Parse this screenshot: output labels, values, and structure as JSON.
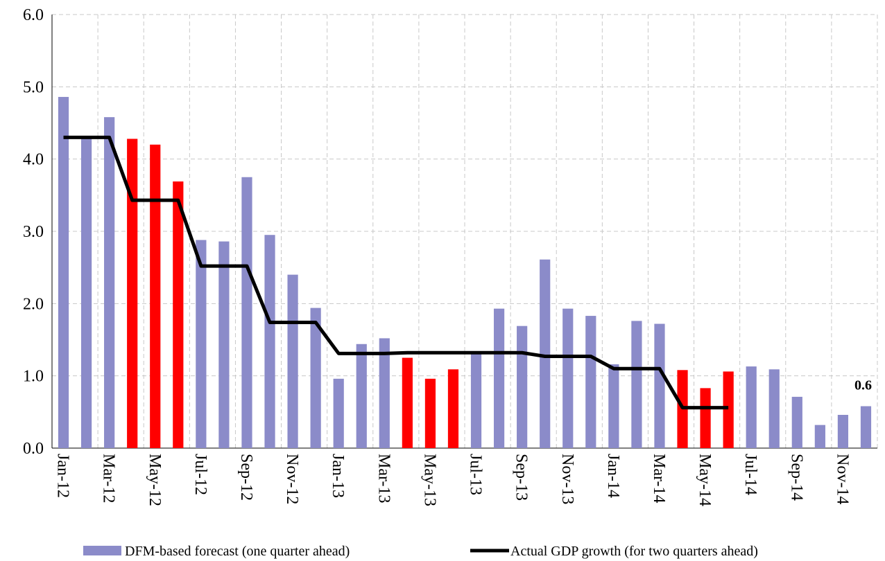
{
  "chart_data": {
    "type": "bar_line",
    "categories": [
      "Jan-12",
      null,
      "Mar-12",
      null,
      "May-12",
      null,
      "Jul-12",
      null,
      "Sep-12",
      null,
      "Nov-12",
      null,
      "Jan-13",
      null,
      "Mar-13",
      null,
      "May-13",
      null,
      "Jul-13",
      null,
      "Sep-13",
      null,
      "Nov-13",
      null,
      "Jan-14",
      null,
      "Mar-14",
      null,
      "May-14",
      null,
      "Jul-14",
      null,
      "Sep-14",
      null,
      "Nov-14",
      null
    ],
    "series": [
      {
        "name": "DFM-based forecast (one quarter ahead)",
        "type": "bar",
        "color": "#8b8bc9",
        "colors": [
          "#8b8bc9",
          "#8b8bc9",
          "#8b8bc9",
          "#ff0000",
          "#ff0000",
          "#ff0000",
          "#8b8bc9",
          "#8b8bc9",
          "#8b8bc9",
          "#8b8bc9",
          "#8b8bc9",
          "#8b8bc9",
          "#8b8bc9",
          "#8b8bc9",
          "#8b8bc9",
          "#ff0000",
          "#ff0000",
          "#ff0000",
          "#8b8bc9",
          "#8b8bc9",
          "#8b8bc9",
          "#8b8bc9",
          "#8b8bc9",
          "#8b8bc9",
          "#8b8bc9",
          "#8b8bc9",
          "#8b8bc9",
          "#ff0000",
          "#ff0000",
          "#ff0000",
          "#8b8bc9",
          "#8b8bc9",
          "#8b8bc9",
          "#8b8bc9",
          "#8b8bc9",
          "#8b8bc9"
        ],
        "values": [
          4.86,
          4.3,
          4.58,
          4.28,
          4.2,
          3.69,
          2.88,
          2.86,
          3.75,
          2.95,
          2.4,
          1.94,
          0.96,
          1.44,
          1.52,
          1.25,
          0.96,
          1.09,
          1.3,
          1.93,
          1.69,
          2.61,
          1.93,
          1.83,
          1.16,
          1.76,
          1.72,
          1.08,
          0.83,
          1.06,
          1.13,
          1.09,
          0.71,
          0.32,
          0.46,
          0.58
        ],
        "value_labels": [
          null,
          null,
          null,
          null,
          null,
          null,
          null,
          null,
          null,
          null,
          null,
          null,
          null,
          null,
          null,
          null,
          null,
          null,
          null,
          null,
          null,
          null,
          null,
          null,
          null,
          null,
          null,
          null,
          null,
          null,
          null,
          null,
          null,
          null,
          null,
          "0.6"
        ]
      },
      {
        "name": "Actual GDP growth (for two quarters ahead)",
        "type": "line",
        "color": "#000000",
        "values": [
          4.3,
          4.3,
          4.3,
          3.43,
          3.43,
          3.43,
          2.52,
          2.52,
          2.52,
          1.74,
          1.74,
          1.74,
          1.31,
          1.31,
          1.31,
          1.32,
          1.32,
          1.32,
          1.32,
          1.32,
          1.32,
          1.27,
          1.27,
          1.27,
          1.1,
          1.1,
          1.1,
          0.56,
          0.56,
          0.56,
          null,
          null,
          null,
          null,
          null,
          null
        ]
      }
    ],
    "ylim": [
      0,
      6
    ],
    "yticks": [
      {
        "value": 0,
        "label": "0.0"
      },
      {
        "value": 1,
        "label": "1.0"
      },
      {
        "value": 2,
        "label": "2.0"
      },
      {
        "value": 3,
        "label": "3.0"
      },
      {
        "value": 4,
        "label": "4.0"
      },
      {
        "value": 5,
        "label": "5.0"
      },
      {
        "value": 6,
        "label": "6.0"
      }
    ],
    "grid": true,
    "legend": "bottom"
  }
}
